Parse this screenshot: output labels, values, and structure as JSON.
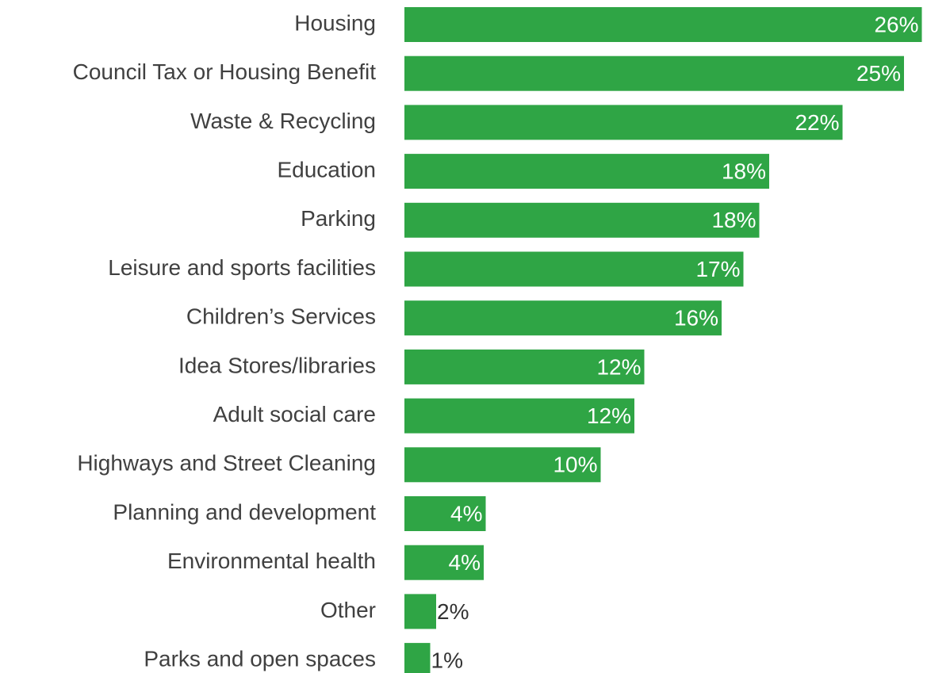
{
  "chart_data": {
    "type": "hbar",
    "categories": [
      "Housing",
      "Council Tax or Housing Benefit",
      "Waste & Recycling",
      "Education",
      "Parking",
      "Leisure and sports facilities",
      "Children’s Services",
      "Idea Stores/libraries",
      "Adult social care",
      "Highways and Street Cleaning",
      "Planning and development",
      "Environmental health",
      "Other",
      "Parks and open spaces"
    ],
    "values": [
      26.1,
      25.2,
      22.1,
      18.4,
      17.9,
      17.1,
      16.0,
      12.1,
      11.6,
      9.9,
      4.1,
      4.0,
      1.6,
      1.3
    ],
    "value_labels": [
      "26%",
      "25%",
      "22%",
      "18%",
      "18%",
      "17%",
      "16%",
      "12%",
      "12%",
      "10%",
      "4%",
      "4%",
      "2%",
      "1%"
    ],
    "color": "#2fa545",
    "xlim": [
      0,
      26.2
    ]
  }
}
